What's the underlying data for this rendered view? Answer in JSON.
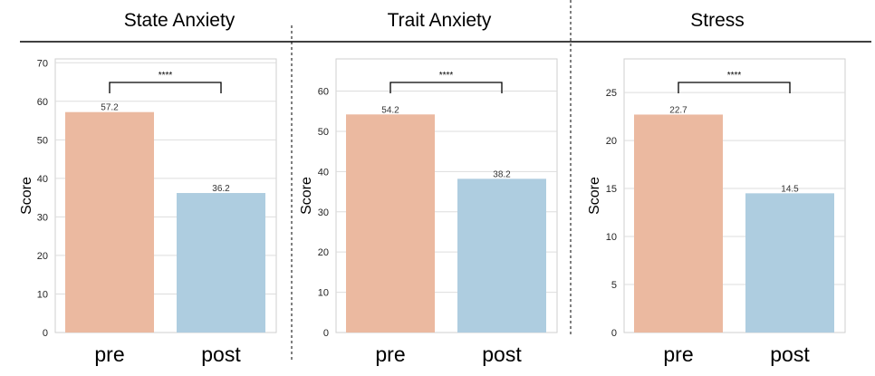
{
  "chart_data": [
    {
      "type": "bar",
      "title": "State Anxiety",
      "ylabel": "Score",
      "categories": [
        "pre",
        "post"
      ],
      "values": [
        57.2,
        36.2
      ],
      "value_labels": [
        "57.2",
        "36.2"
      ],
      "ylim": [
        0,
        71
      ],
      "yticks": [
        0,
        10,
        20,
        30,
        40,
        50,
        60,
        70
      ],
      "significance": "****",
      "colors": [
        "#ebb9a0",
        "#aecde0"
      ],
      "grid": true
    },
    {
      "type": "bar",
      "title": "Trait Anxiety",
      "ylabel": "Score",
      "categories": [
        "pre",
        "post"
      ],
      "values": [
        54.2,
        38.2
      ],
      "value_labels": [
        "54.2",
        "38.2"
      ],
      "ylim": [
        0,
        68
      ],
      "yticks": [
        0,
        10,
        20,
        30,
        40,
        50,
        60
      ],
      "significance": "****",
      "colors": [
        "#ebb9a0",
        "#aecde0"
      ],
      "grid": true
    },
    {
      "type": "bar",
      "title": "Stress",
      "ylabel": "Score",
      "categories": [
        "pre",
        "post"
      ],
      "values": [
        22.7,
        14.5
      ],
      "value_labels": [
        "22.7",
        "14.5"
      ],
      "ylim": [
        0,
        28.5
      ],
      "yticks": [
        0,
        5,
        10,
        15,
        20,
        25
      ],
      "significance": "****",
      "colors": [
        "#ebb9a0",
        "#aecde0"
      ],
      "grid": true
    }
  ]
}
